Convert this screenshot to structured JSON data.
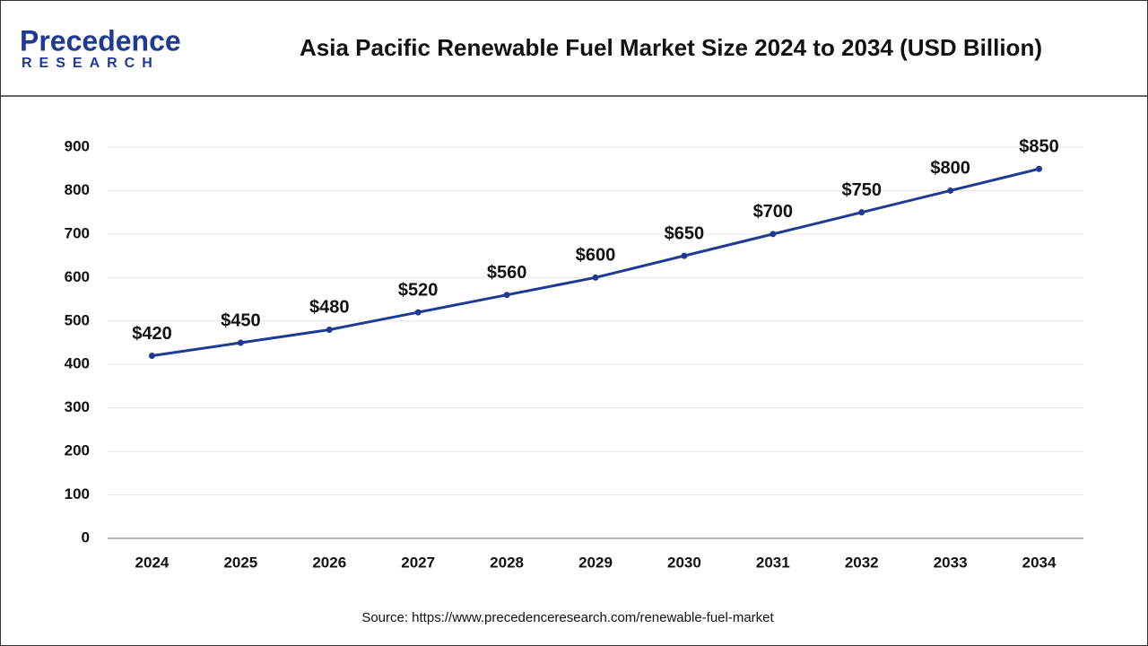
{
  "logo": {
    "name": "Precedence",
    "tagline": "RESEARCH"
  },
  "chart_data": {
    "type": "line",
    "title": "Asia Pacific Renewable Fuel Market Size 2024 to 2034 (USD Billion)",
    "categories": [
      "2024",
      "2025",
      "2026",
      "2027",
      "2028",
      "2029",
      "2030",
      "2031",
      "2032",
      "2033",
      "2034"
    ],
    "values": [
      420,
      450,
      480,
      520,
      560,
      600,
      650,
      700,
      750,
      800,
      850
    ],
    "value_labels": [
      "$420",
      "$450",
      "$480",
      "$520",
      "$560",
      "$600",
      "$650",
      "$700",
      "$750",
      "$800",
      "$850"
    ],
    "color": "#1f3a93",
    "ylim": [
      0,
      900
    ],
    "yticks": [
      0,
      100,
      200,
      300,
      400,
      500,
      600,
      700,
      800,
      900
    ],
    "grid": true
  },
  "source": "Source: https://www.precedenceresearch.com/renewable-fuel-market"
}
